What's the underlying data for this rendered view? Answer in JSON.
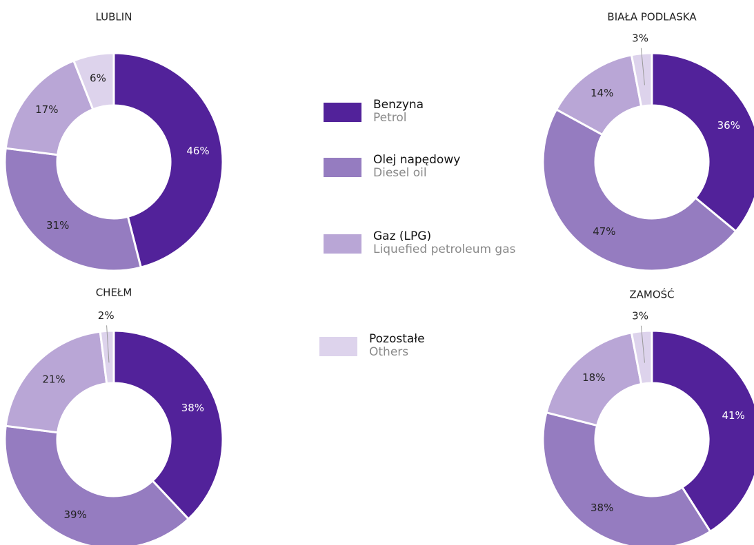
{
  "legend": [
    {
      "name": "Benzyna",
      "subname": "Petrol",
      "color": "#52229a"
    },
    {
      "name": "Olej napędowy",
      "subname": "Diesel oil",
      "color": "#957cc0"
    },
    {
      "name": "Gaz (LPG)",
      "subname": "Liquefied petroleum gas",
      "color": "#b9a6d6"
    },
    {
      "name": "Pozostałe",
      "subname": "Others",
      "color": "#ddd3ec"
    }
  ],
  "chart_data": [
    {
      "type": "pie",
      "title": "LUBLIN",
      "values": [
        46,
        31,
        17,
        6
      ],
      "value_labels": [
        "46%",
        "31%",
        "17%",
        "6%"
      ]
    },
    {
      "type": "pie",
      "title": "BIAŁA PODLASKA",
      "values": [
        36,
        47,
        14,
        3
      ],
      "value_labels": [
        "36%",
        "47%",
        "14%",
        "3%"
      ]
    },
    {
      "type": "pie",
      "title": "CHEŁM",
      "values": [
        38,
        39,
        21,
        2
      ],
      "value_labels": [
        "38%",
        "39%",
        "21%",
        "2%"
      ]
    },
    {
      "type": "pie",
      "title": "ZAMOŚĆ",
      "values": [
        41,
        38,
        18,
        3
      ],
      "value_labels": [
        "41%",
        "38%",
        "18%",
        "3%"
      ]
    }
  ]
}
